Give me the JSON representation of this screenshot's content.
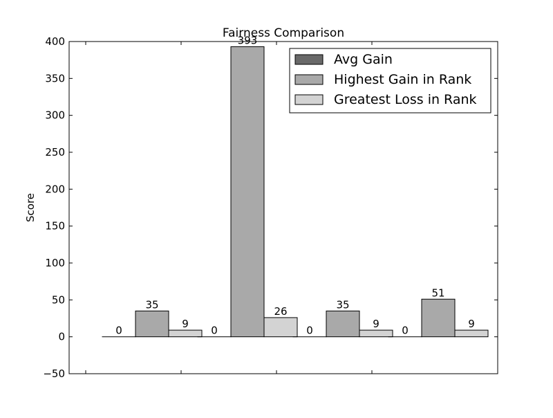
{
  "chart_data": {
    "type": "bar",
    "title": "Fairness Comparison",
    "xlabel": "",
    "ylabel": "Score",
    "ylim": [
      -50,
      400
    ],
    "yticks": [
      -50,
      0,
      50,
      100,
      150,
      200,
      250,
      300,
      350,
      400
    ],
    "ytick_labels": [
      "−50",
      "0",
      "50",
      "100",
      "150",
      "200",
      "250",
      "300",
      "350",
      "400"
    ],
    "groups": 4,
    "grid": false,
    "legend_position": "top-right",
    "series": [
      {
        "name": "Avg Gain",
        "color": "#696969",
        "values": [
          0,
          0,
          0,
          0
        ]
      },
      {
        "name": "Highest Gain in Rank",
        "color": "#a9a9a9",
        "values": [
          35,
          393,
          35,
          51
        ]
      },
      {
        "name": "Greatest Loss in Rank",
        "color": "#d3d3d3",
        "values": [
          9,
          26,
          9,
          9
        ]
      }
    ]
  }
}
